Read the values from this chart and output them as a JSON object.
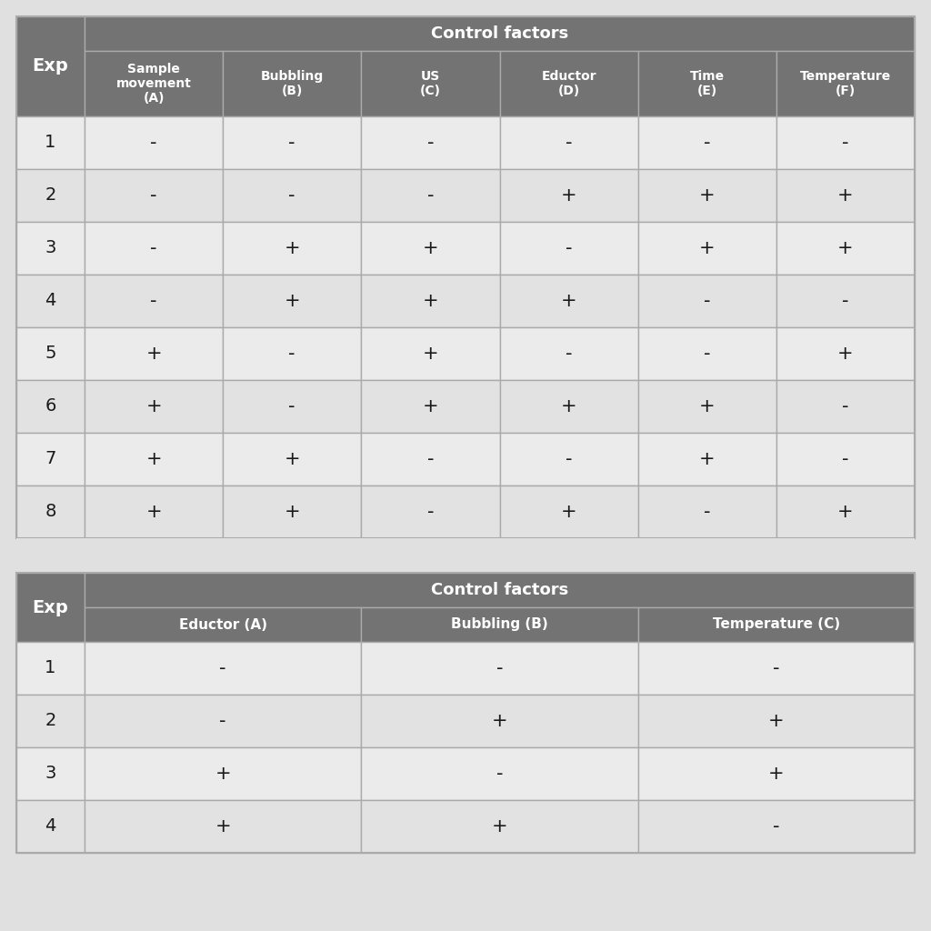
{
  "outer_bg": "#e0e0e0",
  "header_color": "#737373",
  "row_light": "#ebebeb",
  "row_dark": "#e2e2e2",
  "border_color": "#aaaaaa",
  "text_light": "#ffffff",
  "text_dark": "#1a1a1a",
  "table1": {
    "title": "Control factors",
    "exp_label": "Exp",
    "columns": [
      "Sample\nmovement\n(A)",
      "Bubbling\n(B)",
      "US\n(C)",
      "Eductor\n(D)",
      "Time\n(E)",
      "Temperature\n(F)"
    ],
    "rows": [
      [
        "1",
        "-",
        "-",
        "-",
        "-",
        "-",
        "-"
      ],
      [
        "2",
        "-",
        "-",
        "-",
        "+",
        "+",
        "+"
      ],
      [
        "3",
        "-",
        "+",
        "+",
        "-",
        "+",
        "+"
      ],
      [
        "4",
        "-",
        "+",
        "+",
        "+",
        "-",
        "-"
      ],
      [
        "5",
        "+",
        "-",
        "+",
        "-",
        "-",
        "+"
      ],
      [
        "6",
        "+",
        "-",
        "+",
        "+",
        "+",
        "-"
      ],
      [
        "7",
        "+",
        "+",
        "-",
        "-",
        "+",
        "-"
      ],
      [
        "8",
        "+",
        "+",
        "-",
        "+",
        "-",
        "+"
      ]
    ]
  },
  "table2": {
    "title": "Control factors",
    "exp_label": "Exp",
    "columns": [
      "Eductor (A)",
      "Bubbling (B)",
      "Temperature (C)"
    ],
    "rows": [
      [
        "1",
        "-",
        "-",
        "-"
      ],
      [
        "2",
        "-",
        "+",
        "+"
      ],
      [
        "3",
        "+",
        "-",
        "+"
      ],
      [
        "4",
        "+",
        "+",
        "-"
      ]
    ]
  }
}
